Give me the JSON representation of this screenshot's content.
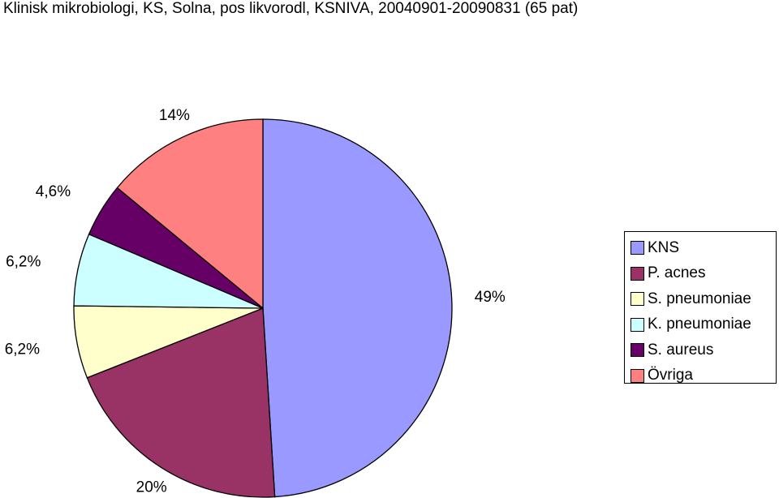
{
  "chart_data": {
    "type": "pie",
    "title": "Klinisk mikrobiologi, KS, Solna, pos likvorodl, KSNIVA, 20040901-20090831 (65 pat)",
    "series": [
      {
        "name": "KNS",
        "value": 49,
        "label": "49%",
        "color": "#9999ff"
      },
      {
        "name": "P. acnes",
        "value": 20,
        "label": "20%",
        "color": "#993366"
      },
      {
        "name": "S. pneumoniae",
        "value": 6.2,
        "label": "6,2%",
        "color": "#ffffcc"
      },
      {
        "name": "K. pneumoniae",
        "value": 6.2,
        "label": "6,2%",
        "color": "#ccffff"
      },
      {
        "name": "S. aureus",
        "value": 4.6,
        "label": "4,6%",
        "color": "#660066"
      },
      {
        "name": "Övriga",
        "value": 14,
        "label": "14%",
        "color": "#ff8080"
      }
    ],
    "legend_position": "right"
  }
}
